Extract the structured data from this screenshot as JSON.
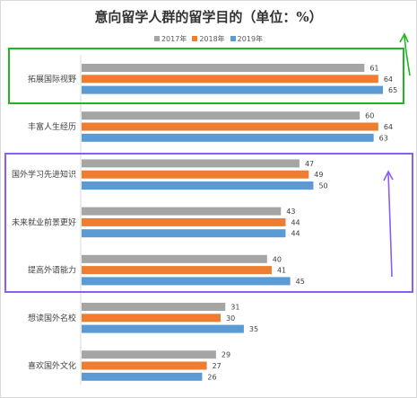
{
  "chart_data": {
    "type": "bar",
    "orientation": "horizontal",
    "title": "意向留学人群的留学目的（单位：%）",
    "xlabel": "",
    "ylabel": "",
    "xlim": [
      0,
      70
    ],
    "grid": false,
    "legend_position": "top",
    "categories": [
      "拓展国际视野",
      "丰富人生经历",
      "国外学习先进知识",
      "未来就业前景更好",
      "提高外语能力",
      "想读国外名校",
      "喜欢国外文化"
    ],
    "series": [
      {
        "name": "2017年",
        "color": "#a5a5a5",
        "values": [
          61,
          60,
          47,
          43,
          40,
          31,
          29
        ]
      },
      {
        "name": "2018年",
        "color": "#ed7d31",
        "values": [
          64,
          64,
          49,
          44,
          41,
          30,
          27
        ]
      },
      {
        "name": "2019年",
        "color": "#5b9bd5",
        "values": [
          65,
          63,
          50,
          44,
          45,
          35,
          26
        ]
      }
    ],
    "annotations": [
      {
        "shape": "rectangle",
        "color": "#22b422",
        "around": [
          "拓展国际视野"
        ]
      },
      {
        "shape": "arrow-up",
        "color": "#22b422"
      },
      {
        "shape": "rectangle",
        "color": "#8b5cf6",
        "around": [
          "国外学习先进知识",
          "未来就业前景更好",
          "提高外语能力"
        ]
      },
      {
        "shape": "arrow-up",
        "color": "#8b5cf6"
      }
    ]
  }
}
